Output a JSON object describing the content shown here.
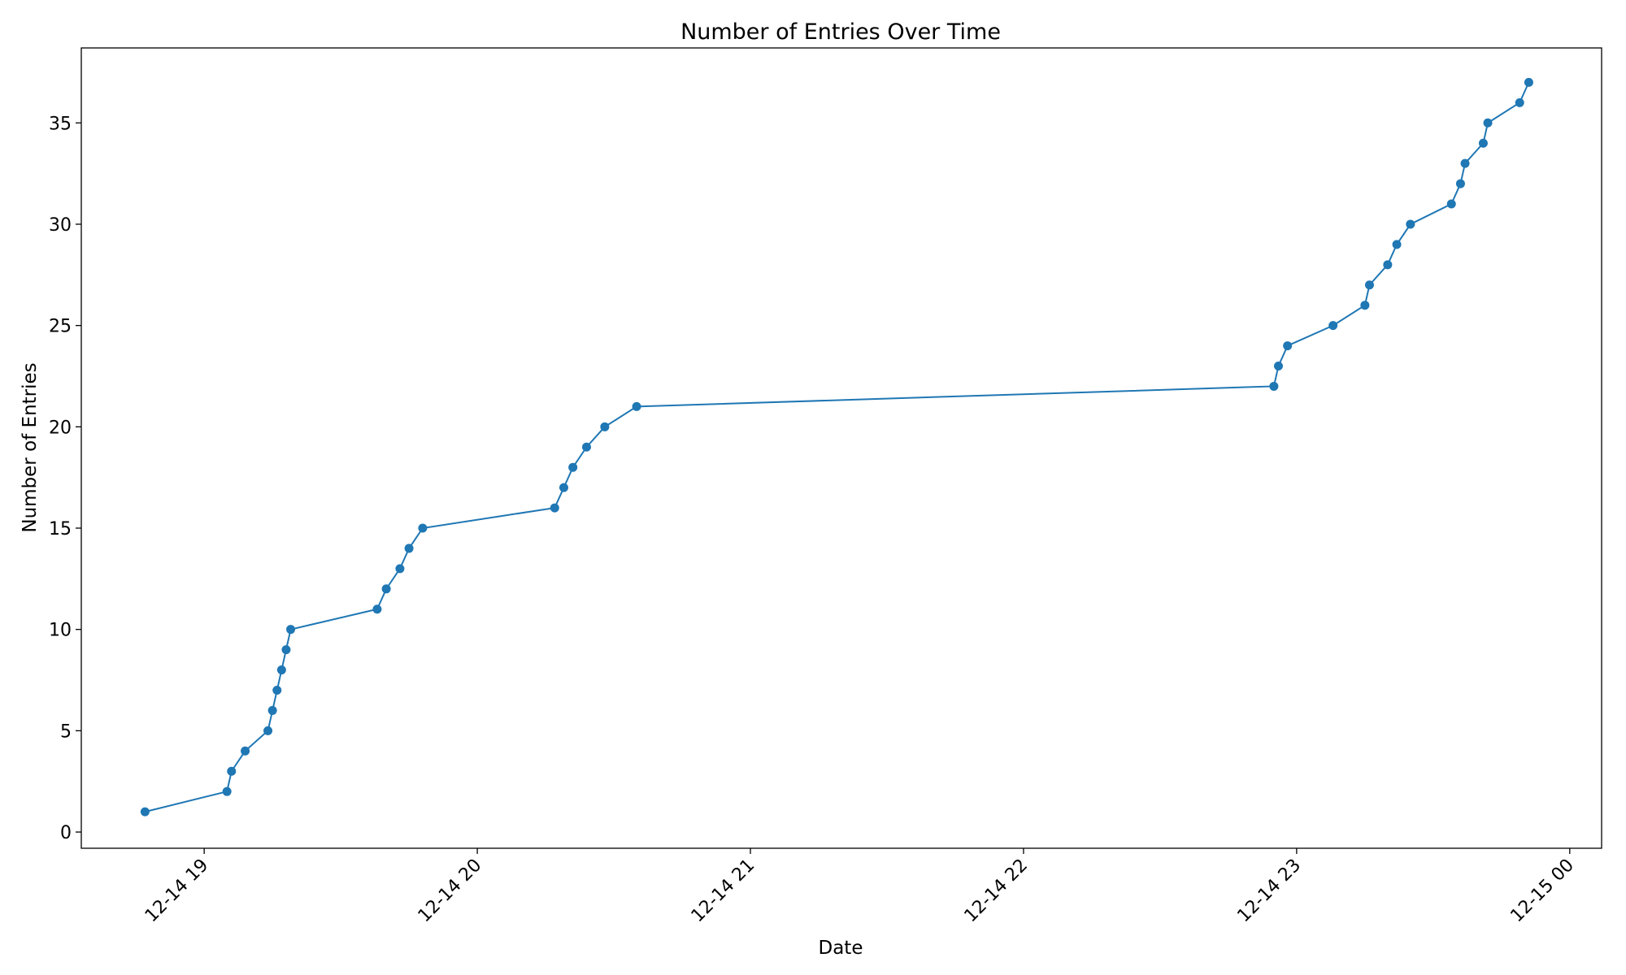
{
  "chart_data": {
    "type": "line",
    "title": "Number of Entries Over Time",
    "xlabel": "Date",
    "ylabel": "Number of Entries",
    "x_ticks": [
      "12-14 19",
      "12-14 20",
      "12-14 21",
      "12-14 22",
      "12-14 23",
      "12-15 00"
    ],
    "y_ticks": [
      "0",
      "5",
      "10",
      "15",
      "20",
      "25",
      "30",
      "35"
    ],
    "xlim": [
      "2023-12-14 18:33",
      "2023-12-15 00:07"
    ],
    "ylim": [
      -0.8,
      38.7
    ],
    "grid": false,
    "series": [
      {
        "color": "#1f77b4",
        "marker": "circle",
        "points": [
          {
            "x": "2023-12-14 18:47",
            "y": 1
          },
          {
            "x": "2023-12-14 19:05",
            "y": 2
          },
          {
            "x": "2023-12-14 19:06",
            "y": 3
          },
          {
            "x": "2023-12-14 19:09",
            "y": 4
          },
          {
            "x": "2023-12-14 19:14",
            "y": 5
          },
          {
            "x": "2023-12-14 19:15",
            "y": 6
          },
          {
            "x": "2023-12-14 19:16",
            "y": 7
          },
          {
            "x": "2023-12-14 19:17",
            "y": 8
          },
          {
            "x": "2023-12-14 19:18",
            "y": 9
          },
          {
            "x": "2023-12-14 19:19",
            "y": 10
          },
          {
            "x": "2023-12-14 19:38",
            "y": 11
          },
          {
            "x": "2023-12-14 19:40",
            "y": 12
          },
          {
            "x": "2023-12-14 19:43",
            "y": 13
          },
          {
            "x": "2023-12-14 19:45",
            "y": 14
          },
          {
            "x": "2023-12-14 19:48",
            "y": 15
          },
          {
            "x": "2023-12-14 20:17",
            "y": 16
          },
          {
            "x": "2023-12-14 20:19",
            "y": 17
          },
          {
            "x": "2023-12-14 20:21",
            "y": 18
          },
          {
            "x": "2023-12-14 20:24",
            "y": 19
          },
          {
            "x": "2023-12-14 20:28",
            "y": 20
          },
          {
            "x": "2023-12-14 20:35",
            "y": 21
          },
          {
            "x": "2023-12-14 22:55",
            "y": 22
          },
          {
            "x": "2023-12-14 22:56",
            "y": 23
          },
          {
            "x": "2023-12-14 22:58",
            "y": 24
          },
          {
            "x": "2023-12-14 23:08",
            "y": 25
          },
          {
            "x": "2023-12-14 23:15",
            "y": 26
          },
          {
            "x": "2023-12-14 23:16",
            "y": 27
          },
          {
            "x": "2023-12-14 23:20",
            "y": 28
          },
          {
            "x": "2023-12-14 23:22",
            "y": 29
          },
          {
            "x": "2023-12-14 23:25",
            "y": 30
          },
          {
            "x": "2023-12-14 23:34",
            "y": 31
          },
          {
            "x": "2023-12-14 23:36",
            "y": 32
          },
          {
            "x": "2023-12-14 23:37",
            "y": 33
          },
          {
            "x": "2023-12-14 23:41",
            "y": 34
          },
          {
            "x": "2023-12-14 23:42",
            "y": 35
          },
          {
            "x": "2023-12-14 23:49",
            "y": 36
          },
          {
            "x": "2023-12-14 23:51",
            "y": 37
          }
        ]
      }
    ]
  }
}
